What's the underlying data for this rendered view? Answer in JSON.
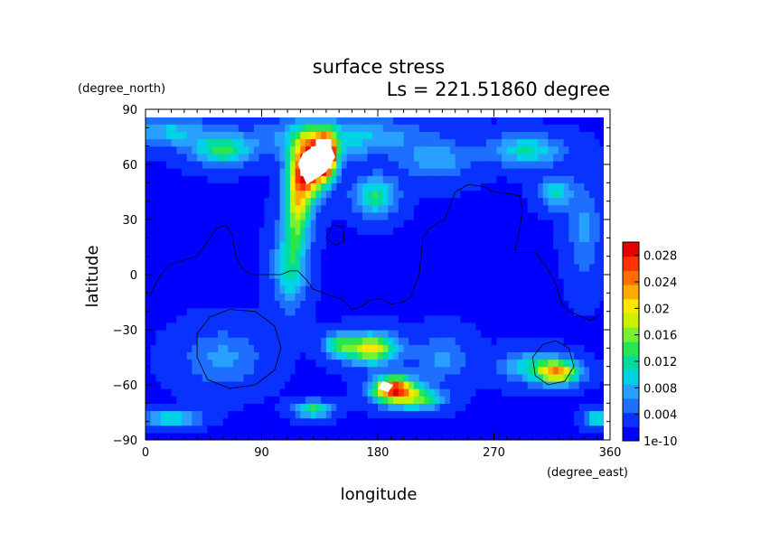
{
  "chart_data": {
    "type": "heatmap",
    "title": "surface stress",
    "subtitle": "Ls = 221.51860 degree",
    "xlabel": "longitude",
    "ylabel": "latitude",
    "x_units": "(degree_east)",
    "y_units": "(degree_north)",
    "xlim": [
      0,
      360
    ],
    "ylim": [
      -90,
      90
    ],
    "x_ticks": [
      0,
      90,
      180,
      270,
      360
    ],
    "y_ticks": [
      90,
      60,
      30,
      0,
      -30,
      -60,
      -90
    ],
    "grid": false,
    "colorbar": {
      "placement": "right",
      "range": [
        0,
        0.03
      ],
      "ticks": [
        {
          "value": 0.028,
          "label": "0.028"
        },
        {
          "value": 0.024,
          "label": "0.024"
        },
        {
          "value": 0.02,
          "label": "0.02"
        },
        {
          "value": 0.016,
          "label": "0.016"
        },
        {
          "value": 0.012,
          "label": "0.012"
        },
        {
          "value": 0.008,
          "label": "0.008"
        },
        {
          "value": 0.004,
          "label": "0.004"
        },
        {
          "value": 0.0,
          "label": "1e-10"
        }
      ],
      "colors": [
        "#0000ff",
        "#0a32ff",
        "#1e6eff",
        "#28a0ff",
        "#00d2e6",
        "#00dca0",
        "#28e650",
        "#78f032",
        "#c8f000",
        "#ffe600",
        "#ffaa00",
        "#ff6e00",
        "#ff3200",
        "#e60000"
      ]
    },
    "background_value": 0.002,
    "features": [
      {
        "lon": 128,
        "lat": 60,
        "rx": 14,
        "ry": 16,
        "value": 0.026
      },
      {
        "lon": 140,
        "lat": 65,
        "rx": 8,
        "ry": 10,
        "value": 0.03
      },
      {
        "lon": 118,
        "lat": 40,
        "rx": 10,
        "ry": 22,
        "value": 0.016
      },
      {
        "lon": 112,
        "lat": 5,
        "rx": 12,
        "ry": 22,
        "value": 0.01
      },
      {
        "lon": 150,
        "lat": 75,
        "rx": 60,
        "ry": 10,
        "value": 0.008
      },
      {
        "lon": 60,
        "lat": 68,
        "rx": 22,
        "ry": 8,
        "value": 0.011
      },
      {
        "lon": 20,
        "lat": 78,
        "rx": 30,
        "ry": 8,
        "value": 0.007
      },
      {
        "lon": 178,
        "lat": 43,
        "rx": 16,
        "ry": 10,
        "value": 0.011
      },
      {
        "lon": 225,
        "lat": 62,
        "rx": 25,
        "ry": 10,
        "value": 0.006
      },
      {
        "lon": 295,
        "lat": 68,
        "rx": 28,
        "ry": 8,
        "value": 0.009
      },
      {
        "lon": 318,
        "lat": 45,
        "rx": 12,
        "ry": 8,
        "value": 0.009
      },
      {
        "lon": 340,
        "lat": 25,
        "rx": 12,
        "ry": 25,
        "value": 0.005
      },
      {
        "lon": 175,
        "lat": -40,
        "rx": 20,
        "ry": 8,
        "value": 0.018
      },
      {
        "lon": 150,
        "lat": -38,
        "rx": 12,
        "ry": 6,
        "value": 0.01
      },
      {
        "lon": 192,
        "lat": -62,
        "rx": 16,
        "ry": 7,
        "value": 0.025
      },
      {
        "lon": 212,
        "lat": -67,
        "rx": 18,
        "ry": 6,
        "value": 0.012
      },
      {
        "lon": 130,
        "lat": -73,
        "rx": 14,
        "ry": 4,
        "value": 0.012
      },
      {
        "lon": 20,
        "lat": -78,
        "rx": 20,
        "ry": 4,
        "value": 0.01
      },
      {
        "lon": 320,
        "lat": -53,
        "rx": 16,
        "ry": 6,
        "value": 0.018
      },
      {
        "lon": 300,
        "lat": -50,
        "rx": 25,
        "ry": 8,
        "value": 0.008
      },
      {
        "lon": 350,
        "lat": -78,
        "rx": 10,
        "ry": 4,
        "value": 0.01
      },
      {
        "lon": 230,
        "lat": -45,
        "rx": 20,
        "ry": 12,
        "value": 0.005
      },
      {
        "lon": 60,
        "lat": -45,
        "rx": 30,
        "ry": 15,
        "value": 0.005
      }
    ],
    "saturated_regions": [
      {
        "points": [
          [
            125,
            49
          ],
          [
            118,
            60
          ],
          [
            122,
            66
          ],
          [
            131,
            70
          ],
          [
            143,
            71
          ],
          [
            147,
            64
          ],
          [
            140,
            56
          ]
        ]
      },
      {
        "points": [
          [
            180,
            -62
          ],
          [
            184,
            -58
          ],
          [
            192,
            -60
          ],
          [
            188,
            -64
          ]
        ]
      }
    ],
    "contour_lines": [
      {
        "closed": false,
        "points": [
          [
            3,
            -12
          ],
          [
            10,
            -2
          ],
          [
            18,
            5
          ],
          [
            30,
            8
          ],
          [
            40,
            10
          ],
          [
            48,
            18
          ],
          [
            55,
            25
          ],
          [
            62,
            27
          ],
          [
            67,
            22
          ],
          [
            70,
            10
          ],
          [
            75,
            3
          ],
          [
            82,
            0
          ],
          [
            95,
            0
          ],
          [
            105,
            0
          ],
          [
            112,
            2
          ],
          [
            118,
            2
          ],
          [
            125,
            -3
          ],
          [
            130,
            -8
          ],
          [
            138,
            -10
          ],
          [
            145,
            -12
          ],
          [
            152,
            -13
          ],
          [
            160,
            -19
          ],
          [
            168,
            -17
          ],
          [
            174,
            -14
          ],
          [
            182,
            -13
          ],
          [
            190,
            -16
          ],
          [
            200,
            -15
          ],
          [
            206,
            -12
          ],
          [
            212,
            0
          ],
          [
            215,
            20
          ],
          [
            220,
            25
          ],
          [
            226,
            28
          ],
          [
            232,
            30
          ],
          [
            240,
            45
          ],
          [
            250,
            49
          ],
          [
            262,
            48
          ],
          [
            270,
            45
          ],
          [
            282,
            44
          ],
          [
            290,
            43
          ],
          [
            292,
            35
          ],
          [
            290,
            25
          ],
          [
            286,
            12
          ],
          [
            292,
            12
          ],
          [
            302,
            12
          ],
          [
            310,
            5
          ],
          [
            318,
            -5
          ],
          [
            322,
            -15
          ],
          [
            328,
            -20
          ],
          [
            335,
            -22
          ],
          [
            345,
            -25
          ],
          [
            352,
            -22
          ]
        ]
      },
      {
        "closed": true,
        "points": [
          [
            40,
            -32
          ],
          [
            50,
            -23
          ],
          [
            65,
            -19
          ],
          [
            85,
            -20
          ],
          [
            100,
            -28
          ],
          [
            105,
            -40
          ],
          [
            100,
            -52
          ],
          [
            85,
            -60
          ],
          [
            65,
            -62
          ],
          [
            48,
            -57
          ],
          [
            40,
            -45
          ]
        ]
      },
      {
        "closed": true,
        "points": [
          [
            300,
            -45
          ],
          [
            308,
            -38
          ],
          [
            318,
            -36
          ],
          [
            328,
            -40
          ],
          [
            332,
            -50
          ],
          [
            325,
            -58
          ],
          [
            312,
            -60
          ],
          [
            302,
            -55
          ]
        ]
      },
      {
        "closed": true,
        "points": [
          [
            140,
            20
          ],
          [
            145,
            27
          ],
          [
            153,
            26
          ],
          [
            154,
            18
          ],
          [
            147,
            16
          ]
        ]
      }
    ]
  }
}
